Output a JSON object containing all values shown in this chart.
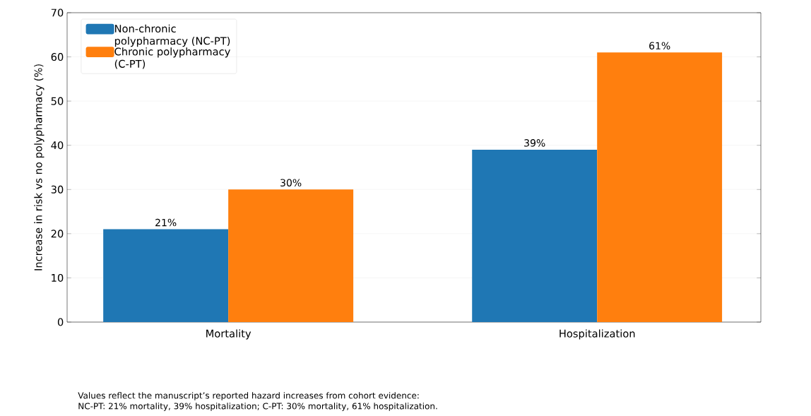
{
  "chart_data": {
    "type": "bar",
    "categories": [
      "Mortality",
      "Hospitalization"
    ],
    "series": [
      {
        "name": "Non-chronic polypharmacy (NC-PT)",
        "color": "#1f77b4",
        "values": [
          21,
          39
        ],
        "value_labels": [
          "21%",
          "39%"
        ]
      },
      {
        "name": "Chronic polypharmacy (C-PT)",
        "color": "#ff7f0e",
        "values": [
          30,
          61
        ],
        "value_labels": [
          "30%",
          "61%"
        ]
      }
    ],
    "ylabel": "Increase in risk vs no polypharmacy (%)",
    "ylim": [
      0,
      70
    ],
    "yticks": [
      0,
      10,
      20,
      30,
      40,
      50,
      60,
      70
    ],
    "grid": "y",
    "legend": "top left",
    "annotations": [
      "Values reflect the manuscript’s reported hazard increases from cohort evidence:",
      "NC-PT: 21% mortality, 39% hospitalization; C-PT: 30% mortality, 61% hospitalization."
    ]
  }
}
